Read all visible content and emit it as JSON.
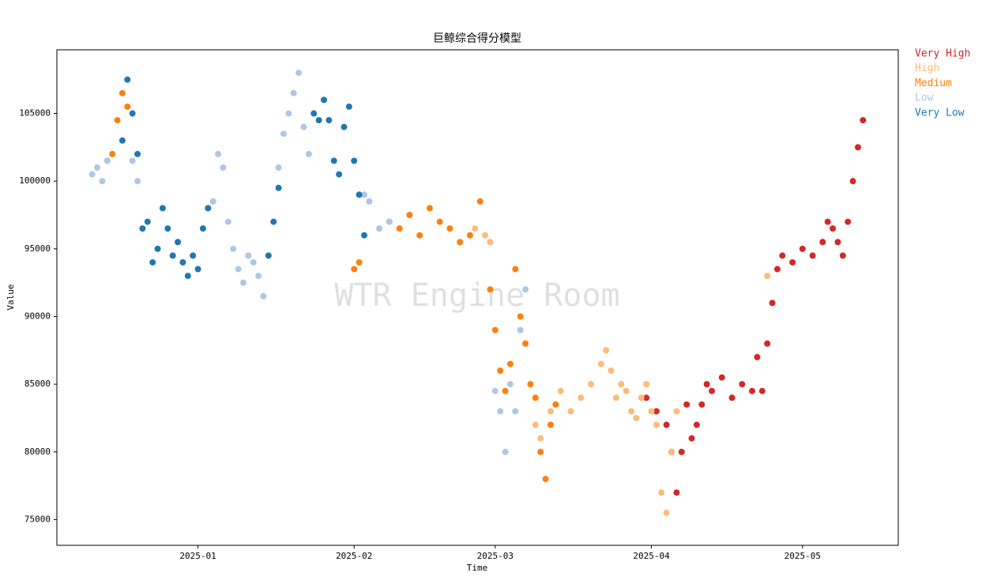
{
  "chart_data": {
    "type": "scatter",
    "title": "巨鲸综合得分模型",
    "x_label": "Time",
    "y_label": "Value",
    "watermark": "WTR Engine Room",
    "xlim": [
      -28,
      139
    ],
    "xticks": [
      {
        "value": 0,
        "label": "2025-01"
      },
      {
        "value": 31,
        "label": "2025-02"
      },
      {
        "value": 59,
        "label": "2025-03"
      },
      {
        "value": 90,
        "label": "2025-04"
      },
      {
        "value": 120,
        "label": "2025-05"
      }
    ],
    "ylim": [
      73100,
      109700
    ],
    "yticks": [
      75000,
      80000,
      85000,
      90000,
      95000,
      100000,
      105000
    ],
    "grid": false,
    "legend": "outside-right",
    "series": [
      {
        "name": "Very High",
        "color": "#d62728",
        "x": [
          89,
          91,
          93,
          94,
          95,
          96,
          97,
          98,
          99,
          100,
          101,
          102,
          104,
          106,
          108,
          110,
          111,
          112,
          113,
          114,
          115,
          116,
          118,
          120,
          122,
          124,
          125,
          126,
          127,
          128,
          129,
          130,
          131,
          132
        ],
        "values": [
          84000,
          83000,
          82000,
          80000,
          77000,
          80000,
          83500,
          81000,
          82000,
          83500,
          85000,
          84500,
          85500,
          84000,
          85000,
          84500,
          87000,
          84500,
          88000,
          91000,
          93500,
          94500,
          94000,
          95000,
          94500,
          95500,
          97000,
          96500,
          95500,
          94500,
          97000,
          100000,
          102500,
          104500
        ]
      },
      {
        "name": "High",
        "color": "#ffbb78",
        "x": [
          55,
          57,
          58,
          67,
          68,
          70,
          72,
          74,
          76,
          78,
          80,
          81,
          82,
          83,
          84,
          85,
          86,
          87,
          88,
          89,
          90,
          91,
          92,
          93,
          94,
          95,
          113
        ],
        "values": [
          96500,
          96000,
          95500,
          82000,
          81000,
          83000,
          84500,
          83000,
          84000,
          85000,
          86500,
          87500,
          86000,
          84000,
          85000,
          84500,
          83000,
          82500,
          84000,
          85000,
          83000,
          82000,
          77000,
          75500,
          80000,
          83000,
          93000
        ]
      },
      {
        "name": "Medium",
        "color": "#ff7f0e",
        "x": [
          -18,
          -17,
          -16,
          -15,
          -14,
          31,
          32,
          38,
          40,
          42,
          44,
          46,
          48,
          50,
          52,
          54,
          56,
          58,
          59,
          60,
          61,
          62,
          63,
          64,
          65,
          66,
          67,
          68,
          69,
          70,
          71
        ],
        "values": [
          101500,
          102000,
          104500,
          106500,
          105500,
          93500,
          94000,
          97000,
          96500,
          97500,
          96000,
          98000,
          97000,
          96500,
          95500,
          96000,
          98500,
          92000,
          89000,
          86000,
          84500,
          86500,
          93500,
          90000,
          88000,
          85000,
          84000,
          80000,
          78000,
          82000,
          83500
        ]
      },
      {
        "name": "Low",
        "color": "#aec7e8",
        "x": [
          -21,
          -20,
          -19,
          -18,
          -13,
          -12,
          2,
          3,
          4,
          5,
          6,
          7,
          8,
          9,
          10,
          11,
          12,
          13,
          16,
          17,
          18,
          19,
          20,
          21,
          22,
          33,
          34,
          36,
          38,
          59,
          60,
          61,
          62,
          63,
          64,
          65
        ],
        "values": [
          100500,
          101000,
          100000,
          101500,
          101500,
          100000,
          98000,
          98500,
          102000,
          101000,
          97000,
          95000,
          93500,
          92500,
          94500,
          94000,
          93000,
          91500,
          101000,
          103500,
          105000,
          106500,
          108000,
          104000,
          102000,
          99000,
          98500,
          96500,
          97000,
          84500,
          83000,
          80000,
          85000,
          83000,
          89000,
          92000
        ]
      },
      {
        "name": "Very Low",
        "color": "#1f77b4",
        "x": [
          -15,
          -14,
          -13,
          -12,
          -11,
          -10,
          -9,
          -8,
          -7,
          -6,
          -5,
          -4,
          -3,
          -2,
          -1,
          0,
          1,
          2,
          14,
          15,
          16,
          23,
          24,
          25,
          26,
          27,
          28,
          29,
          30,
          31,
          32,
          33
        ],
        "values": [
          103000,
          107500,
          105000,
          102000,
          96500,
          97000,
          94000,
          95000,
          98000,
          96500,
          94500,
          95500,
          94000,
          93000,
          94500,
          93500,
          96500,
          98000,
          94500,
          97000,
          99500,
          105000,
          104500,
          106000,
          104500,
          101500,
          100500,
          104000,
          105500,
          101500,
          99000,
          96000
        ]
      }
    ]
  }
}
